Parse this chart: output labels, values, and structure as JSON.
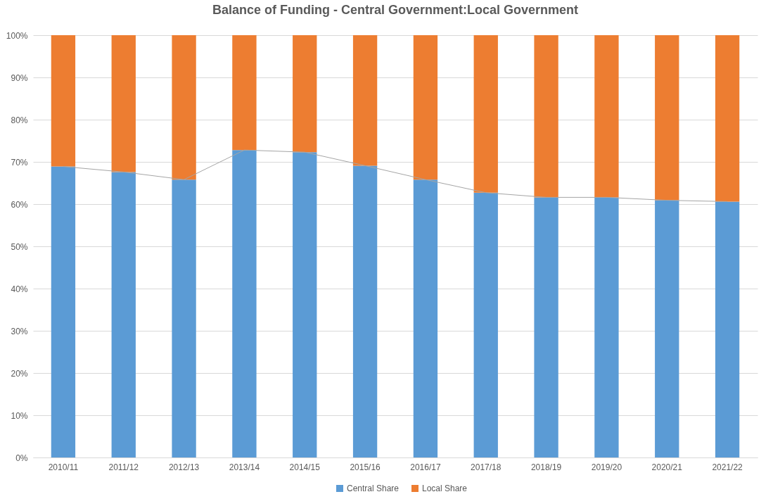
{
  "chart_data": {
    "type": "bar",
    "title": "Balance of Funding - Central Government:Local Government",
    "categories": [
      "2010/11",
      "2011/12",
      "2012/13",
      "2013/14",
      "2014/15",
      "2015/16",
      "2016/17",
      "2017/18",
      "2018/19",
      "2019/20",
      "2020/21",
      "2021/22"
    ],
    "stacked": true,
    "series": [
      {
        "name": "Central Share",
        "color": "#5b9bd5",
        "values": [
          68.9,
          67.6,
          65.8,
          72.8,
          72.3,
          69.1,
          65.8,
          62.7,
          61.6,
          61.6,
          60.9,
          60.6
        ]
      },
      {
        "name": "Local Share",
        "color": "#ed7d31",
        "values": [
          31.1,
          32.4,
          34.2,
          27.2,
          27.7,
          30.9,
          34.2,
          37.3,
          38.4,
          38.4,
          39.1,
          39.4
        ]
      },
      {
        "type": "line",
        "color": "#a5a5a5",
        "values": [
          68.9,
          67.6,
          65.8,
          72.8,
          72.3,
          69.1,
          65.8,
          62.7,
          61.6,
          61.6,
          60.9,
          60.6
        ]
      }
    ],
    "ylim": [
      0,
      100
    ],
    "yticks": [
      {
        "value": 0,
        "label": "0%"
      },
      {
        "value": 10,
        "label": "10%"
      },
      {
        "value": 20,
        "label": "20%"
      },
      {
        "value": 30,
        "label": "30%"
      },
      {
        "value": 40,
        "label": "40%"
      },
      {
        "value": 50,
        "label": "50%"
      },
      {
        "value": 60,
        "label": "60%"
      },
      {
        "value": 70,
        "label": "70%"
      },
      {
        "value": 80,
        "label": "80%"
      },
      {
        "value": 90,
        "label": "90%"
      },
      {
        "value": 100,
        "label": "100%"
      }
    ],
    "grid": "y",
    "legend": "bottom"
  }
}
